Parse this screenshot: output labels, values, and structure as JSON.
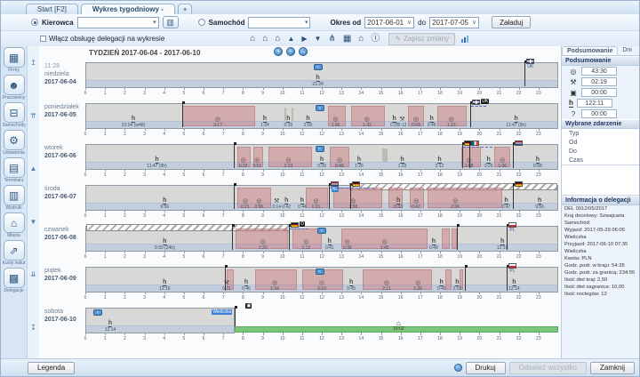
{
  "tabs": [
    {
      "label": "Start [F2]",
      "active": false
    },
    {
      "label": "Wykres tygodniowy -",
      "active": true
    },
    {
      "label": "+",
      "active": false
    }
  ],
  "toolbar": {
    "kierowca_label": "Kierowca",
    "kierowca_value": "",
    "samochod_label": "Samochód",
    "samochod_value": "",
    "okres_od_label": "Okres od",
    "okres_od_value": "2017-06-01",
    "do_label": "do",
    "do_value": "2017-07-05",
    "load_button": "Załaduj",
    "checkbox_label": "Włącz obsługę delegacji na wykresie",
    "save_button": "Zapisz zmiany",
    "icons": [
      {
        "name": "home-start-icon",
        "glyph": "⌂"
      },
      {
        "name": "home-add-icon",
        "glyph": "⌂"
      },
      {
        "name": "home-end-icon",
        "glyph": "⌂"
      },
      {
        "name": "event-up-icon",
        "glyph": "▲"
      },
      {
        "name": "event-next-icon",
        "glyph": "▶"
      },
      {
        "name": "event-down-icon",
        "glyph": "▼"
      },
      {
        "name": "meal-icon",
        "glyph": "⋔"
      },
      {
        "name": "border-card-icon",
        "glyph": "▦"
      },
      {
        "name": "home-view-icon",
        "glyph": "⌂"
      },
      {
        "name": "info-icon",
        "glyph": "ⓘ"
      }
    ]
  },
  "sidebar": [
    {
      "name": "firmy",
      "glyph": "▦",
      "label": "Firmy"
    },
    {
      "name": "pracownicy",
      "glyph": "☻",
      "label": "Pracownicy"
    },
    {
      "name": "samochody",
      "glyph": "⊟",
      "label": "Samochody"
    },
    {
      "name": "ustawienia",
      "glyph": "⚙",
      "label": "Ustawienia"
    },
    {
      "name": "terminarz",
      "glyph": "▤",
      "label": "Terminarz"
    },
    {
      "name": "wydruki",
      "glyph": "▥",
      "label": "Wydruki"
    },
    {
      "name": "miasta",
      "glyph": "⌂",
      "label": "Miasta"
    },
    {
      "name": "kursy-walut",
      "glyph": "⇗",
      "label": "Kursy walut"
    },
    {
      "name": "delegacje",
      "glyph": "▩",
      "label": "Delegacje"
    }
  ],
  "arrow_controls": [
    "↥",
    "⇈",
    "▲",
    "▼",
    "⇊",
    "↧"
  ],
  "zoom_controls": [
    {
      "name": "zoom-in-icon",
      "glyph": "+"
    },
    {
      "name": "zoom-out-icon",
      "glyph": "−"
    },
    {
      "name": "zoom-fit-icon",
      "glyph": "↔"
    }
  ],
  "summary_panel": {
    "tabs": [
      "Podsumowanie",
      "Dni"
    ],
    "section_title": "Podsumowanie",
    "rows": [
      {
        "icon": "drive-icon",
        "glyph": "◎",
        "value": "43:30"
      },
      {
        "icon": "work-icon",
        "glyph": "⚒",
        "value": "02:19"
      },
      {
        "icon": "availability-icon",
        "glyph": "▣",
        "value": "00:00"
      },
      {
        "icon": "rest-icon",
        "glyph": "h",
        "value": "122:11"
      },
      {
        "icon": "unknown-icon",
        "glyph": "?",
        "value": "00:00"
      }
    ],
    "event_title": "Wybrane zdarzenie",
    "event_fields": [
      "Typ",
      "Od",
      "Do",
      "Czas"
    ],
    "delegation_title": "Informacja o delegacji",
    "delegation_lines": [
      "DEL 0012/05/2017",
      "Kraj docelowy: Szwajcaria",
      "Samochód:",
      "Wyjazd: 2017-05-29 06:05",
      "Wieliczka",
      "Przyjazd: 2017-06-10 07:35",
      "Wieliczka",
      "Kwota:          PLN",
      "Godz. podr. w kraju: 54:35",
      "Godz. podr. za granicą: 234:55",
      "Ilość diet kraj: 2,50",
      "Ilość diet zagranica: 10,00",
      "Ilość noclegów: 12"
    ]
  },
  "chart_data": {
    "type": "table",
    "title": "TYDZIEŃ 2017-06-04 - 2017-06-10",
    "axis_hours": [
      0,
      1,
      2,
      3,
      4,
      5,
      6,
      7,
      8,
      9,
      10,
      11,
      12,
      13,
      14,
      15,
      16,
      17,
      18,
      19,
      20,
      21,
      22,
      23
    ],
    "icon_glyphs": {
      "drive": "◎",
      "rest": "h",
      "work": "⚒"
    },
    "days": [
      {
        "name": "niedziela",
        "date": "2017-06-04",
        "toplabel": "11:28",
        "box_end": 24,
        "blocks": [],
        "gblocks": [],
        "icons": [
          {
            "t": "rest",
            "x": 11.8,
            "label": "21:24"
          }
        ],
        "ferries": [
          11.8
        ],
        "markers": [
          {
            "x": 22.3,
            "flag": "uk",
            "label": "UK"
          }
        ]
      },
      {
        "name": "poniedziałek",
        "date": "2017-06-05",
        "box_end": 24,
        "blocks": [
          [
            4.9,
            8.6
          ],
          [
            12.3,
            13.2
          ],
          [
            13.5,
            15.2
          ],
          [
            16.4,
            17.2
          ],
          [
            17.9,
            19.4
          ]
        ],
        "gblocks": [
          [
            10.1,
            10.2
          ],
          [
            10.45,
            10.55
          ]
        ],
        "icons": [
          {
            "t": "rest",
            "x": 2.4,
            "label": "31:04 (w48)"
          },
          {
            "t": "drive",
            "x": 6.7,
            "label": "3:17"
          },
          {
            "t": "rest",
            "x": 9.1,
            "label": "1:24"
          },
          {
            "t": "rest",
            "x": 10.3,
            "label": "0:15"
          },
          {
            "t": "rest",
            "x": 11.3,
            "label": "2:00"
          },
          {
            "t": "drive",
            "x": 12.7,
            "label": "1:06"
          },
          {
            "t": "drive",
            "x": 14.3,
            "label": "1:32"
          },
          {
            "t": "rest",
            "x": 15.7,
            "label": "0:25"
          },
          {
            "t": "work",
            "x": 16.1,
            "label": "0:12"
          },
          {
            "t": "drive",
            "x": 16.8,
            "label": "0:58"
          },
          {
            "t": "rest",
            "x": 17.6,
            "label": "0:46"
          },
          {
            "t": "drive",
            "x": 18.6,
            "label": "1:22"
          },
          {
            "t": "rest",
            "x": 21.9,
            "label": "11:47 (9h)"
          }
        ],
        "ferries": [
          11.9
        ],
        "markers": [
          {
            "x": 4.9
          },
          {
            "x": 19.55,
            "flag": "uk",
            "tag": "UK",
            "line_to": 20.3
          }
        ]
      },
      {
        "name": "wtorek",
        "date": "2017-06-06",
        "box_end": 24,
        "blocks": [
          [
            7.7,
            8.4
          ],
          [
            8.5,
            9.0
          ],
          [
            9.3,
            11.5
          ],
          [
            12.4,
            13.4
          ],
          [
            19.1,
            20.1
          ],
          [
            20.8,
            21.6
          ]
        ],
        "gblocks": [
          [
            15.1,
            15.35
          ]
        ],
        "icons": [
          {
            "t": "rest",
            "x": 3.6,
            "label": "11:47 (9h)"
          },
          {
            "t": "drive",
            "x": 8.0,
            "label": "0:32"
          },
          {
            "t": "drive",
            "x": 8.7,
            "label": "0:52"
          },
          {
            "t": "drive",
            "x": 10.3,
            "label": "2:33"
          },
          {
            "t": "rest",
            "x": 12.0,
            "label": "0:39"
          },
          {
            "t": "drive",
            "x": 12.9,
            "label": "0:48"
          },
          {
            "t": "rest",
            "x": 13.9,
            "label": "1:26"
          },
          {
            "t": "rest",
            "x": 16.1,
            "label": "1:20"
          },
          {
            "t": "rest",
            "x": 18.0,
            "label": "2:12"
          },
          {
            "t": "drive",
            "x": 19.5,
            "label": "1:08"
          },
          {
            "t": "rest",
            "x": 20.5,
            "label": "0:20"
          },
          {
            "t": "drive",
            "x": 21.2,
            "label": "1:06"
          },
          {
            "t": "rest",
            "x": 23.0,
            "label": "0:58"
          }
        ],
        "ferries": [
          11.9
        ],
        "markers": [
          {
            "x": 7.55
          },
          {
            "x": 19.15,
            "flag": "de",
            "line_to": 20.6
          },
          {
            "x": 19.5,
            "flag": "fr"
          },
          {
            "x": 21.7,
            "flag": "nl"
          }
        ]
      },
      {
        "name": "środa",
        "date": "2017-06-07",
        "box_end": 24,
        "hatch": [
          13.4,
          24
        ],
        "blocks": [
          [
            7.7,
            9.4
          ],
          [
            11.2,
            12.3
          ],
          [
            12.6,
            15.1
          ],
          [
            15.4,
            16.1
          ],
          [
            16.5,
            17.2
          ],
          [
            17.4,
            21.2
          ]
        ],
        "gblocks": [],
        "icons": [
          {
            "t": "rest",
            "x": 4.0,
            "label": "9:56"
          },
          {
            "t": "drive",
            "x": 8.1,
            "label": "0:21"
          },
          {
            "t": "drive",
            "x": 8.8,
            "label": "0:56"
          },
          {
            "t": "work",
            "x": 9.7,
            "label": "0:14"
          },
          {
            "t": "rest",
            "x": 10.2,
            "label": "0:42"
          },
          {
            "t": "rest",
            "x": 11.0,
            "label": "0:44"
          },
          {
            "t": "drive",
            "x": 11.7,
            "label": "1:21"
          },
          {
            "t": "drive",
            "x": 13.6,
            "label": "1:58"
          },
          {
            "t": "rest",
            "x": 15.9,
            "label": "0:33"
          },
          {
            "t": "drive",
            "x": 16.8,
            "label": "0:47"
          },
          {
            "t": "drive",
            "x": 18.8,
            "label": "2:06"
          },
          {
            "t": "rest",
            "x": 21.4,
            "label": "0:47"
          },
          {
            "t": "rest",
            "x": 23.1,
            "label": "9:56"
          }
        ],
        "ferries": [],
        "markers": [
          {
            "x": 7.55
          },
          {
            "x": 12.35,
            "flag": "nl",
            "label": "NL",
            "selected": true,
            "line_to": 13.3
          },
          {
            "x": 13.45,
            "flag": "de",
            "line_to": 14.6
          },
          {
            "x": 21.7,
            "flag": "de"
          }
        ]
      },
      {
        "name": "czwartek",
        "date": "2017-06-08",
        "box_end": 24,
        "hatch": [
          0,
          10.35
        ],
        "blocks": [
          [
            7.6,
            10.3
          ],
          [
            10.5,
            12.0
          ],
          [
            13.0,
            17.4
          ],
          [
            18.1,
            18.5
          ],
          [
            18.6,
            18.9
          ]
        ],
        "gblocks": [],
        "icons": [
          {
            "t": "rest",
            "x": 4.0,
            "label": "9:30 (24h)"
          },
          {
            "t": "drive",
            "x": 9.0,
            "label": "2:20"
          },
          {
            "t": "drive",
            "x": 11.2,
            "label": "1:12"
          },
          {
            "t": "rest",
            "x": 12.4,
            "label": "0:41"
          },
          {
            "t": "drive",
            "x": 13.3,
            "label": "0:39"
          },
          {
            "t": "drive",
            "x": 15.2,
            "label": "1:45"
          },
          {
            "t": "rest",
            "x": 17.7,
            "label": "0:48"
          },
          {
            "t": "rest",
            "x": 21.2,
            "label": "12:19"
          }
        ],
        "ferries": [
          12.0
        ],
        "markers": [
          {
            "x": 7.45
          },
          {
            "x": 10.35,
            "flag": "de",
            "tag": "D",
            "line_to": 11.3
          },
          {
            "x": 18.85
          },
          {
            "x": 21.4,
            "flag": "pl",
            "label": "PL"
          }
        ]
      },
      {
        "name": "piątek",
        "date": "2017-06-09",
        "box_end": 24,
        "blocks": [
          [
            7.15,
            7.5
          ],
          [
            8.6,
            10.75
          ],
          [
            11.0,
            13.1
          ],
          [
            14.1,
            17.6
          ],
          [
            18.3,
            18.6
          ],
          [
            19.0,
            19.2
          ]
        ],
        "gblocks": [],
        "icons": [
          {
            "t": "rest",
            "x": 4.0,
            "label": "12:16"
          },
          {
            "t": "work",
            "x": 7.15,
            "label": "0:21"
          },
          {
            "t": "rest",
            "x": 8.15,
            "label": "0:46"
          },
          {
            "t": "drive",
            "x": 9.6,
            "label": "1:34"
          },
          {
            "t": "drive",
            "x": 12.0,
            "label": "2:10"
          },
          {
            "t": "rest",
            "x": 13.5,
            "label": "0:45"
          },
          {
            "t": "drive",
            "x": 15.3,
            "label": "2:11"
          },
          {
            "t": "drive",
            "x": 16.9,
            "label": "1:26"
          },
          {
            "t": "rest",
            "x": 18.1,
            "label": "0:46"
          },
          {
            "t": "rest",
            "x": 18.9,
            "label": "2:02"
          },
          {
            "t": "rest",
            "x": 21.8,
            "label": "12:14"
          }
        ],
        "ferries": [
          11.9
        ],
        "markers": [
          {
            "x": 7.1
          },
          {
            "x": 19.25
          },
          {
            "x": 21.4,
            "flag": "pl",
            "label": "PL"
          }
        ]
      },
      {
        "name": "sobota",
        "date": "2017-06-10",
        "box_end": 7.6,
        "blocks": [],
        "gblocks": [],
        "icons": [
          {
            "t": "rest",
            "x": 3.9,
            "label": "12:14"
          }
        ],
        "ferries": [
          1.9
        ],
        "markers": [
          {
            "x": 7.6,
            "tag": "▣",
            "label": "Wieliczka",
            "selected": true,
            "label_side": "left"
          }
        ],
        "green": {
          "start": 7.6,
          "end": 24,
          "house_x": 15.9,
          "house_label": "16:02"
        }
      }
    ]
  },
  "footer": {
    "legend": "Legenda",
    "print": "Drukuj",
    "refresh": "Odśwież wszystko",
    "close": "Zamknij"
  }
}
